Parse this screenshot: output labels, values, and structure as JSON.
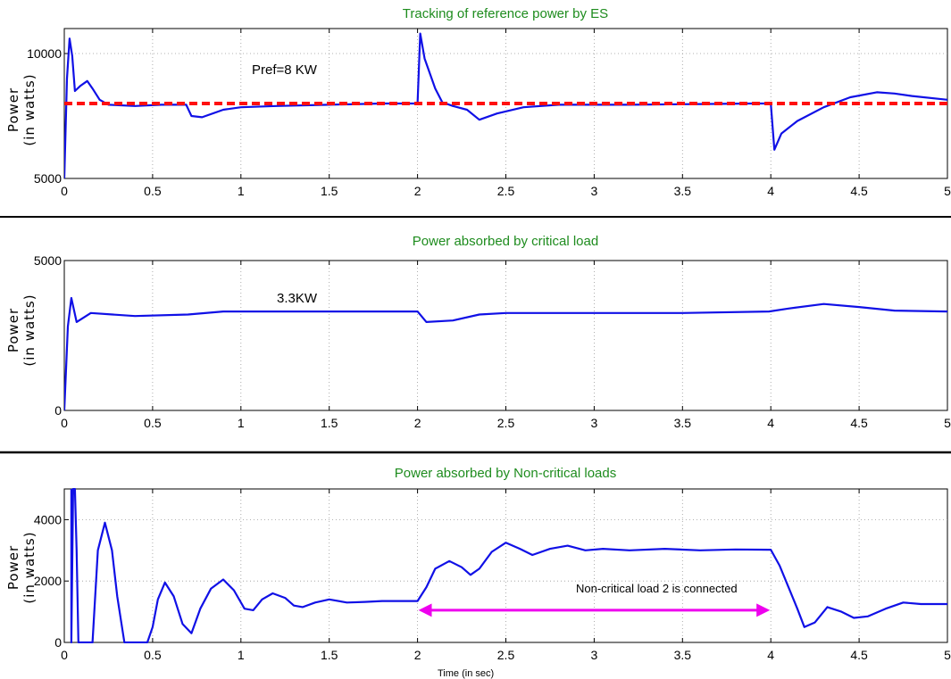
{
  "chart_data": [
    {
      "type": "line",
      "title": "Tracking of reference power by ES",
      "ylabel": "Power (in watts)",
      "xlabel": "",
      "xlim": [
        0,
        5
      ],
      "ylim": [
        5000,
        11000
      ],
      "xticks": [
        "0",
        "0.5",
        "1",
        "1.5",
        "2",
        "2.5",
        "3",
        "3.5",
        "4",
        "4.5",
        "5"
      ],
      "yticks": [
        {
          "v": 5000,
          "label": "5000"
        },
        {
          "v": 10000,
          "label": "10000"
        }
      ],
      "grid": true,
      "series": [
        {
          "color": "#1010e6",
          "style": "solid",
          "x": [
            0,
            0.015,
            0.03,
            0.045,
            0.06,
            0.09,
            0.13,
            0.16,
            0.2,
            0.25,
            0.4,
            0.55,
            0.69,
            0.72,
            0.78,
            0.9,
            1.0,
            1.2,
            1.5,
            1.8,
            1.99,
            2.0,
            2.015,
            2.04,
            2.1,
            2.14,
            2.2,
            2.28,
            2.35,
            2.45,
            2.6,
            2.8,
            3.2,
            3.6,
            3.9,
            3.99,
            4.0,
            4.02,
            4.06,
            4.15,
            4.3,
            4.45,
            4.6,
            4.7,
            4.8,
            5.0
          ],
          "y": [
            5000,
            9000,
            10600,
            9900,
            8500,
            8700,
            8900,
            8600,
            8150,
            7950,
            7900,
            7950,
            7950,
            7500,
            7450,
            7750,
            7850,
            7900,
            7950,
            8000,
            8000,
            8000,
            10800,
            9800,
            8600,
            8050,
            7900,
            7750,
            7350,
            7600,
            7850,
            7950,
            7950,
            7980,
            8000,
            8000,
            8000,
            6150,
            6800,
            7300,
            7850,
            8250,
            8450,
            8400,
            8300,
            8150
          ]
        },
        {
          "name": "Pref=8 KW",
          "color": "#ff1010",
          "style": "dashed",
          "x": [
            0,
            5
          ],
          "y": [
            8000,
            8000
          ]
        }
      ],
      "annotations": [
        {
          "text": "Pref=8 KW",
          "x": 1.0,
          "y": 9900
        }
      ]
    },
    {
      "type": "line",
      "title": "Power absorbed by critical load",
      "ylabel": "Power (in watts)",
      "xlabel": "",
      "xlim": [
        0,
        5
      ],
      "ylim": [
        0,
        5000
      ],
      "xticks": [
        "0",
        "0.5",
        "1",
        "1.5",
        "2",
        "2.5",
        "3",
        "3.5",
        "4",
        "4.5",
        "5"
      ],
      "yticks": [
        {
          "v": 0,
          "label": "0"
        },
        {
          "v": 5000,
          "label": "5000"
        }
      ],
      "grid": true,
      "series": [
        {
          "color": "#1010e6",
          "style": "solid",
          "x": [
            0,
            0.02,
            0.04,
            0.07,
            0.15,
            0.4,
            0.7,
            0.9,
            1.0,
            1.5,
            1.99,
            2.0,
            2.05,
            2.2,
            2.35,
            2.5,
            3.0,
            3.5,
            3.99,
            4.1,
            4.3,
            4.5,
            4.7,
            5.0
          ],
          "y": [
            0,
            2800,
            3750,
            2950,
            3250,
            3150,
            3200,
            3300,
            3300,
            3300,
            3300,
            3300,
            2950,
            3000,
            3200,
            3250,
            3250,
            3250,
            3300,
            3400,
            3550,
            3450,
            3330,
            3300
          ]
        }
      ],
      "annotations": [
        {
          "text": "3.3KW",
          "x": 1.3,
          "y": 3700
        }
      ]
    },
    {
      "type": "line",
      "title": "Power absorbed by Non-critical loads",
      "ylabel": "Power (in watts)",
      "xlabel": "Time (in sec)",
      "xlim": [
        0,
        5
      ],
      "ylim": [
        0,
        5000
      ],
      "xticks": [
        "0",
        "0.5",
        "1",
        "1.5",
        "2",
        "2.5",
        "3",
        "3.5",
        "4",
        "4.5",
        "5"
      ],
      "yticks": [
        {
          "v": 0,
          "label": "0"
        },
        {
          "v": 2000,
          "label": "2000"
        },
        {
          "v": 4000,
          "label": "4000"
        }
      ],
      "grid": true,
      "series": [
        {
          "color": "#1010e6",
          "style": "solid",
          "x": [
            0.04,
            0.04,
            0.05,
            0.06,
            0.07,
            0.08,
            0.09,
            0.1,
            0.13,
            0.16,
            0.19,
            0.23,
            0.27,
            0.3,
            0.34,
            0.38,
            0.41,
            0.44,
            0.47,
            0.5,
            0.53,
            0.57,
            0.62,
            0.67,
            0.72,
            0.77,
            0.83,
            0.9,
            0.96,
            1.02,
            1.07,
            1.12,
            1.18,
            1.25,
            1.3,
            1.35,
            1.42,
            1.5,
            1.6,
            1.7,
            1.8,
            1.9,
            1.99,
            2.0,
            2.05,
            2.1,
            2.18,
            2.25,
            2.3,
            2.35,
            2.42,
            2.5,
            2.58,
            2.65,
            2.75,
            2.85,
            2.95,
            3.05,
            3.2,
            3.4,
            3.6,
            3.8,
            3.99,
            4.0,
            4.05,
            4.1,
            4.15,
            4.19,
            4.25,
            4.32,
            4.4,
            4.47,
            4.55,
            4.65,
            4.75,
            4.85,
            5.0
          ],
          "y": [
            5000,
            0,
            5000,
            5000,
            3000,
            0,
            0,
            0,
            0,
            0,
            3000,
            3900,
            3000,
            1500,
            0,
            0,
            0,
            0,
            0,
            500,
            1400,
            1950,
            1500,
            600,
            300,
            1100,
            1750,
            2050,
            1700,
            1100,
            1050,
            1400,
            1600,
            1450,
            1200,
            1150,
            1300,
            1400,
            1300,
            1320,
            1350,
            1350,
            1350,
            1350,
            1800,
            2400,
            2650,
            2450,
            2200,
            2400,
            2950,
            3250,
            3050,
            2850,
            3050,
            3150,
            3000,
            3050,
            3000,
            3050,
            3000,
            3030,
            3020,
            3020,
            2500,
            1800,
            1100,
            500,
            650,
            1150,
            1000,
            800,
            850,
            1100,
            1300,
            1250,
            1250
          ]
        },
        {
          "name": "Non-critical load 2 is connected",
          "color": "#ee00ee",
          "style": "arrow",
          "x": [
            2.0,
            4.0
          ],
          "y": [
            1050,
            1050
          ]
        }
      ],
      "annotations": [
        {
          "text": "Non-critical load 2 is connected",
          "x": 2.9,
          "y": 1850
        }
      ]
    }
  ]
}
